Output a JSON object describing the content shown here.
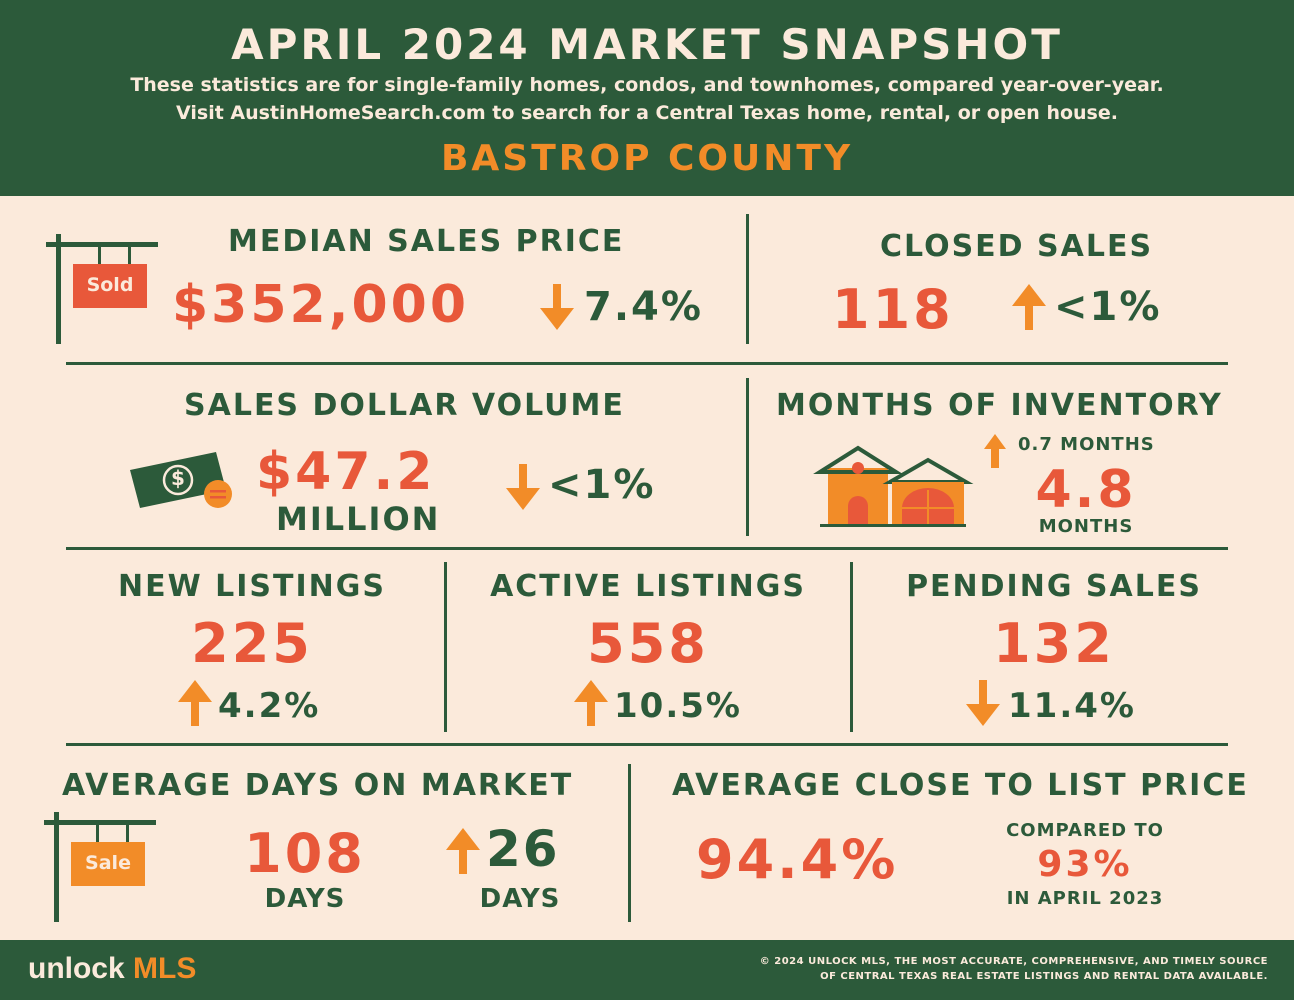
{
  "header": {
    "title": "APRIL 2024 MARKET SNAPSHOT",
    "subtitle_line1": "These statistics are for single-family homes, condos, and townhomes, compared year-over-year.",
    "subtitle_line2": "Visit AustinHomeSearch.com to search for a Central Texas home, rental, or open house.",
    "county": "BASTROP COUNTY"
  },
  "colors": {
    "green": "#2c5a3a",
    "orange": "#f28c28",
    "red_orange": "#e8583a",
    "cream": "#fbeadb"
  },
  "median_sales_price": {
    "label": "MEDIAN SALES PRICE",
    "value": "$352,000",
    "change": "7.4%",
    "direction": "down",
    "sign_text": "Sold"
  },
  "closed_sales": {
    "label": "CLOSED SALES",
    "value": "118",
    "change": "<1%",
    "direction": "up"
  },
  "sales_dollar_volume": {
    "label": "SALES DOLLAR VOLUME",
    "value": "$47.2",
    "unit": "MILLION",
    "change": "<1%",
    "direction": "down",
    "bill_symbol": "$"
  },
  "months_of_inventory": {
    "label": "MONTHS OF INVENTORY",
    "change": "0.7 MONTHS",
    "direction": "up",
    "value": "4.8",
    "unit": "MONTHS"
  },
  "new_listings": {
    "label": "NEW LISTINGS",
    "value": "225",
    "change": "4.2%",
    "direction": "up"
  },
  "active_listings": {
    "label": "ACTIVE LISTINGS",
    "value": "558",
    "change": "10.5%",
    "direction": "up"
  },
  "pending_sales": {
    "label": "PENDING SALES",
    "value": "132",
    "change": "11.4%",
    "direction": "down"
  },
  "average_days_on_market": {
    "label": "AVERAGE DAYS ON MARKET",
    "value": "108",
    "unit": "DAYS",
    "change": "26",
    "change_unit": "DAYS",
    "direction": "up",
    "sign_text": "Sale"
  },
  "average_close_to_list": {
    "label": "AVERAGE CLOSE TO LIST PRICE",
    "value": "94.4%",
    "compared_label": "COMPARED TO",
    "compared_value": "93%",
    "compared_period": "IN APRIL 2023"
  },
  "footer": {
    "logo_part1": "unlock ",
    "logo_part2": "MLS",
    "copyright_line1": "© 2024 UNLOCK MLS, THE MOST ACCURATE, COMPREHENSIVE, AND TIMELY SOURCE",
    "copyright_line2": "OF CENTRAL TEXAS REAL ESTATE LISTINGS AND RENTAL DATA AVAILABLE."
  }
}
